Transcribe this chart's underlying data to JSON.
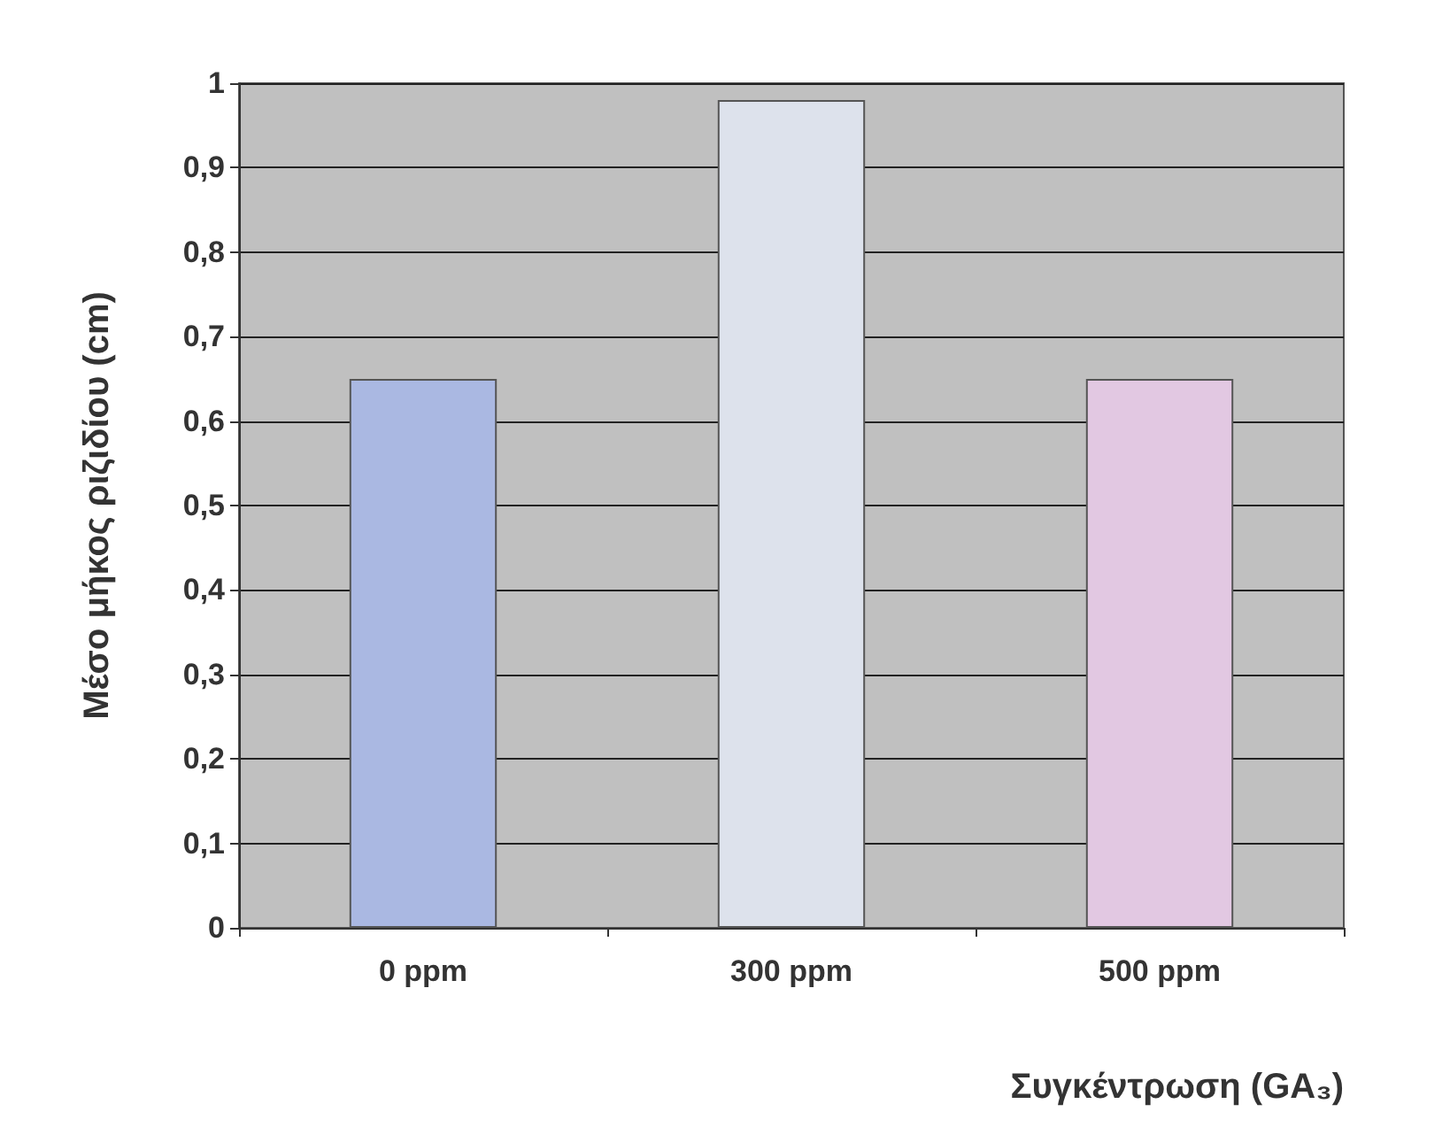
{
  "chart_data": {
    "type": "bar",
    "xlabel": "Συγκέντρωση (GA₃)",
    "ylabel": "Μέσο μήκος ριζιδίου (cm)",
    "categories": [
      "0 ppm",
      "300 ppm",
      "500 ppm"
    ],
    "values": [
      0.65,
      0.98,
      0.65
    ],
    "colors": [
      "#aab8e2",
      "#dde2ec",
      "#e2c8e2"
    ],
    "ylim": [
      0,
      1
    ],
    "yticks": [
      0,
      {
        "value": 0.1,
        "label": "0,1"
      },
      {
        "value": 0.2,
        "label": "0,2"
      },
      {
        "value": 0.3,
        "label": "0,3"
      },
      {
        "value": 0.4,
        "label": "0,4"
      },
      {
        "value": 0.5,
        "label": "0,5"
      },
      {
        "value": 0.6,
        "label": "0,6"
      },
      {
        "value": 0.7,
        "label": "0,7"
      },
      {
        "value": 0.8,
        "label": "0,8"
      },
      {
        "value": 0.9,
        "label": "0,9"
      },
      1
    ],
    "grid": "y"
  }
}
